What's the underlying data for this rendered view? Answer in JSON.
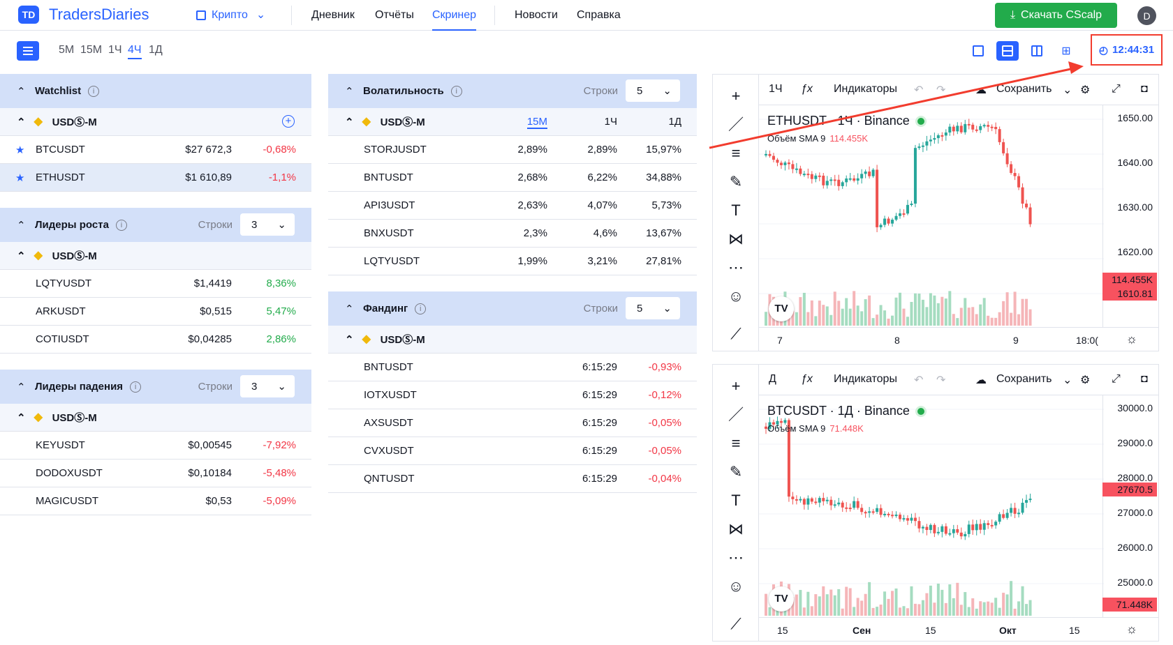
{
  "brand": {
    "logo_mark": "TD",
    "name": "TradersDiaries"
  },
  "nav": {
    "crypto": "Крипто",
    "diary": "Дневник",
    "reports": "Отчёты",
    "screener": "Скринер",
    "news": "Новости",
    "help": "Справка",
    "download": "Скачать CScalp",
    "avatar": "D"
  },
  "timeframes": [
    "5М",
    "15М",
    "1Ч",
    "4Ч",
    "1Д"
  ],
  "active_timeframe": "4Ч",
  "clock": "12:44:31",
  "colors": {
    "accent": "#2962ff",
    "green": "#22ab4b",
    "red": "#f23645",
    "header_bg": "#d3e0f9"
  },
  "exchange": "USDⓈ-M",
  "rows_label": "Строки",
  "watchlist": {
    "title": "Watchlist",
    "rows": [
      {
        "symbol": "BTCUSDT",
        "price": "$27 672,3",
        "change": "-0,68%"
      },
      {
        "symbol": "ETHUSDT",
        "price": "$1 610,89",
        "change": "-1,1%"
      }
    ]
  },
  "gainers": {
    "title": "Лидеры роста",
    "rows_value": "3",
    "rows": [
      {
        "symbol": "LQTYUSDT",
        "price": "$1,4419",
        "change": "8,36%"
      },
      {
        "symbol": "ARKUSDT",
        "price": "$0,515",
        "change": "5,47%"
      },
      {
        "symbol": "COTIUSDT",
        "price": "$0,04285",
        "change": "2,86%"
      }
    ]
  },
  "losers": {
    "title": "Лидеры падения",
    "rows_value": "3",
    "rows": [
      {
        "symbol": "KEYUSDT",
        "price": "$0,00545",
        "change": "-7,92%"
      },
      {
        "symbol": "DODOXUSDT",
        "price": "$0,10184",
        "change": "-5,48%"
      },
      {
        "symbol": "MAGICUSDT",
        "price": "$0,53",
        "change": "-5,09%"
      }
    ]
  },
  "volatility": {
    "title": "Волатильность",
    "rows_value": "5",
    "cols": [
      "15М",
      "1Ч",
      "1Д"
    ],
    "rows": [
      {
        "symbol": "STORJUSDT",
        "v1": "2,89%",
        "v2": "2,89%",
        "v3": "15,97%"
      },
      {
        "symbol": "BNTUSDT",
        "v1": "2,68%",
        "v2": "6,22%",
        "v3": "34,88%"
      },
      {
        "symbol": "API3USDT",
        "v1": "2,63%",
        "v2": "4,07%",
        "v3": "5,73%"
      },
      {
        "symbol": "BNXUSDT",
        "v1": "2,3%",
        "v2": "4,6%",
        "v3": "13,67%"
      },
      {
        "symbol": "LQTYUSDT",
        "v1": "1,99%",
        "v2": "3,21%",
        "v3": "27,81%"
      }
    ]
  },
  "funding": {
    "title": "Фандинг",
    "rows_value": "5",
    "rows": [
      {
        "symbol": "BNTUSDT",
        "time": "6:15:29",
        "rate": "-0,93%"
      },
      {
        "symbol": "IOTXUSDT",
        "time": "6:15:29",
        "rate": "-0,12%"
      },
      {
        "symbol": "AXSUSDT",
        "time": "6:15:29",
        "rate": "-0,05%"
      },
      {
        "symbol": "CVXUSDT",
        "time": "6:15:29",
        "rate": "-0,05%"
      },
      {
        "symbol": "QNTUSDT",
        "time": "6:15:29",
        "rate": "-0,04%"
      }
    ]
  },
  "chart1": {
    "interval": "1Ч",
    "indicators": "Индикаторы",
    "save": "Сохранить",
    "symbol_line": "ETHUSDT · 1Ч · Binance",
    "vol_label": "Объём SMA 9",
    "vol_value": "114.455K",
    "y_ticks": [
      "1650.00",
      "1640.00",
      "1630.00",
      "1620.00"
    ],
    "price_label": "1610.81",
    "vol_label_axis": "114.455K",
    "x_ticks": [
      "7",
      "8",
      "9",
      "18:0("
    ]
  },
  "chart2": {
    "interval": "Д",
    "indicators": "Индикаторы",
    "save": "Сохранить",
    "symbol_line": "BTCUSDT · 1Д · Binance",
    "vol_label": "Объём SMA 9",
    "vol_value": "71.448K",
    "y_ticks": [
      "30000.0",
      "29000.0",
      "28000.0",
      "27000.0",
      "26000.0",
      "25000.0"
    ],
    "price_label": "27670.5",
    "vol_label_axis": "71.448K",
    "x_ticks": [
      "15",
      "Сен",
      "15",
      "Окт",
      "15"
    ]
  }
}
